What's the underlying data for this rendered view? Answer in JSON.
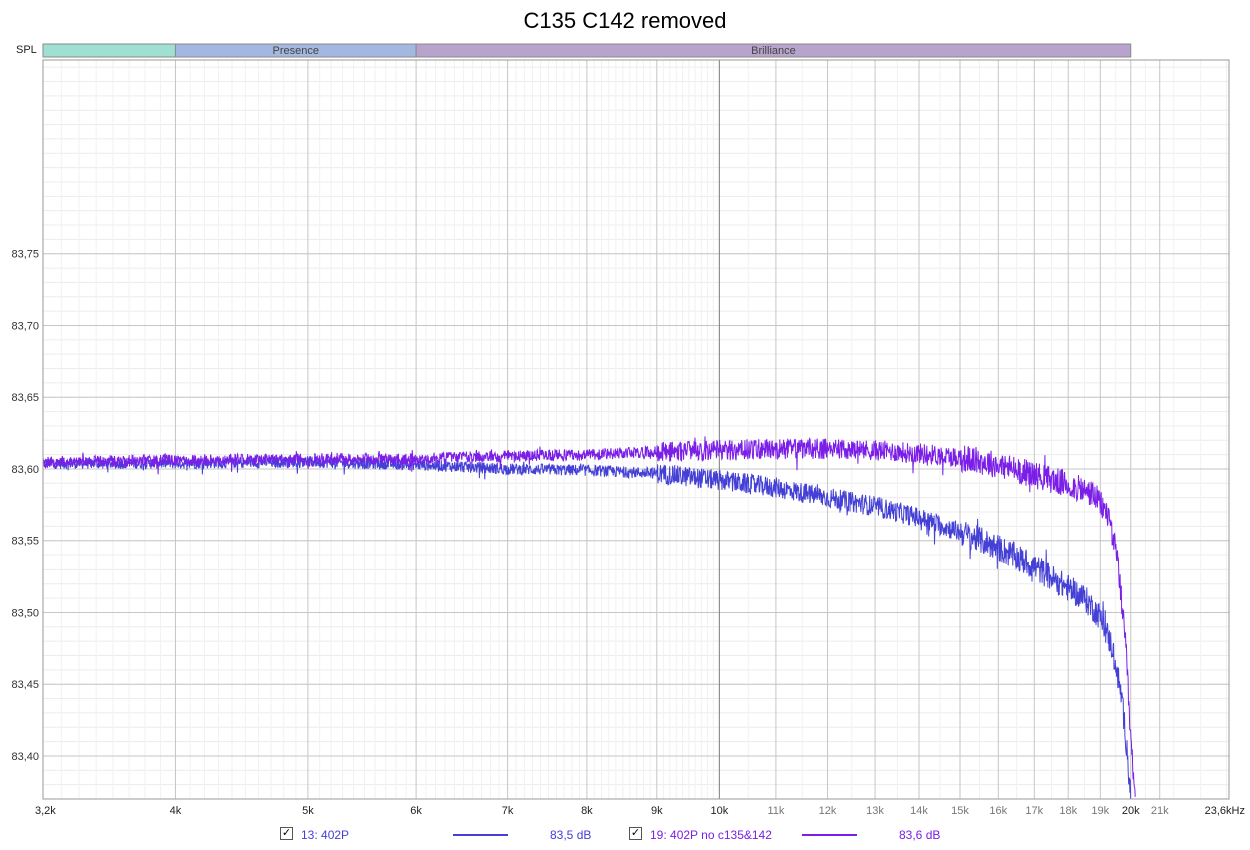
{
  "chart_data": {
    "type": "line",
    "title": "C135 C142 removed",
    "ylabel": "SPL",
    "xscale": "log",
    "xlim": [
      3200,
      23600
    ],
    "ylim": [
      83.37,
      83.885
    ],
    "y_ticks": [
      83.4,
      83.45,
      83.5,
      83.55,
      83.6,
      83.65,
      83.7,
      83.75
    ],
    "y_tick_labels": [
      "83,40",
      "83,45",
      "83,50",
      "83,55",
      "83,60",
      "83,65",
      "83,70",
      "83,75"
    ],
    "x_ticks": [
      3200,
      4000,
      5000,
      6000,
      7000,
      8000,
      9000,
      10000,
      11000,
      12000,
      13000,
      14000,
      15000,
      16000,
      17000,
      18000,
      19000,
      20000,
      21000,
      23600
    ],
    "x_tick_labels": [
      "3,2k",
      "4k",
      "5k",
      "6k",
      "7k",
      "8k",
      "9k",
      "10k",
      "11k",
      "12k",
      "13k",
      "14k",
      "15k",
      "16k",
      "17k",
      "18k",
      "19k",
      "20k",
      "21k",
      "23,6kHz"
    ],
    "bands": [
      {
        "label": "",
        "start": 3200,
        "end": 4000,
        "color": "#9fe0d3"
      },
      {
        "label": "Presence",
        "start": 4000,
        "end": 6000,
        "color": "#a4b7e0"
      },
      {
        "label": "Brilliance",
        "start": 6000,
        "end": 20000,
        "color": "#b8a3cc"
      }
    ],
    "grid": true,
    "series": [
      {
        "name": "13: 402P",
        "value_label": "83,5 dB",
        "color": "#4440d6",
        "x": [
          3200,
          4000,
          5000,
          6000,
          7000,
          8000,
          9000,
          10000,
          11000,
          12000,
          13000,
          14000,
          15000,
          16000,
          17000,
          18000,
          18500,
          19000,
          19400,
          19700,
          19900,
          20000
        ],
        "y": [
          83.604,
          83.604,
          83.605,
          83.603,
          83.6,
          83.599,
          83.597,
          83.592,
          83.587,
          83.58,
          83.574,
          83.566,
          83.556,
          83.545,
          83.532,
          83.517,
          83.51,
          83.497,
          83.475,
          83.44,
          83.4,
          83.37
        ],
        "noise": 0.004
      },
      {
        "name": "19: 402P no c135&142",
        "value_label": "83,6 dB",
        "color": "#7a1ee8",
        "x": [
          3200,
          4000,
          5000,
          6000,
          7000,
          8000,
          9000,
          10000,
          11000,
          12000,
          13000,
          14000,
          15000,
          16000,
          17000,
          18000,
          18800,
          19300,
          19600,
          19850,
          20000,
          20150
        ],
        "y": [
          83.605,
          83.606,
          83.607,
          83.607,
          83.609,
          83.61,
          83.612,
          83.613,
          83.614,
          83.614,
          83.613,
          83.611,
          83.608,
          83.603,
          83.596,
          83.589,
          83.582,
          83.566,
          83.53,
          83.47,
          83.41,
          83.37
        ],
        "noise": 0.004
      }
    ]
  },
  "legend": {
    "items": [
      {
        "checked": "✓",
        "label": "13: 402P",
        "value": "83,5 dB"
      },
      {
        "checked": "✓",
        "label": "19: 402P no c135&142",
        "value": "83,6 dB"
      }
    ]
  }
}
